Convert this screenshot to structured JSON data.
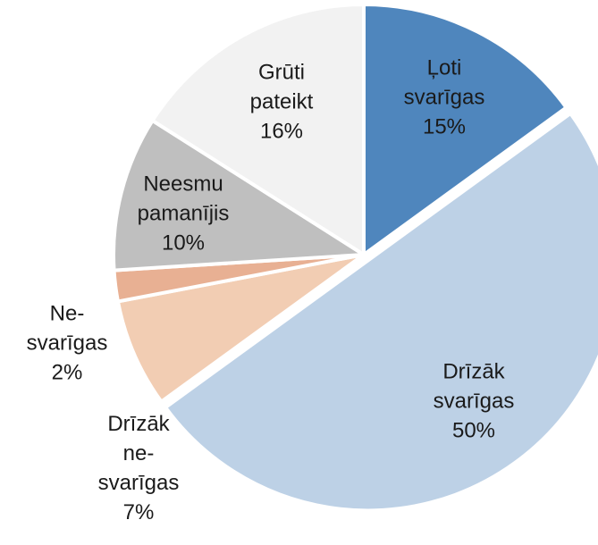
{
  "chart_data": {
    "type": "pie",
    "categories": [
      [
        "Ļoti",
        "svarīgas"
      ],
      [
        "Drīzāk",
        "svarīgas"
      ],
      [
        "Drīzāk",
        "ne-",
        "svarīgas"
      ],
      [
        "Ne-",
        "svarīgas"
      ],
      [
        "Neesmu",
        "pamanījis"
      ],
      [
        "Grūti",
        "pateikt"
      ]
    ],
    "values": [
      15,
      50,
      7,
      2,
      10,
      16
    ],
    "value_labels": [
      "15%",
      "50%",
      "7%",
      "2%",
      "10%",
      "16%"
    ],
    "colors": [
      "#4f86bd",
      "#bdd1e6",
      "#f2cdb3",
      "#e8b093",
      "#bfbfbf",
      "#f2f2f2"
    ]
  }
}
